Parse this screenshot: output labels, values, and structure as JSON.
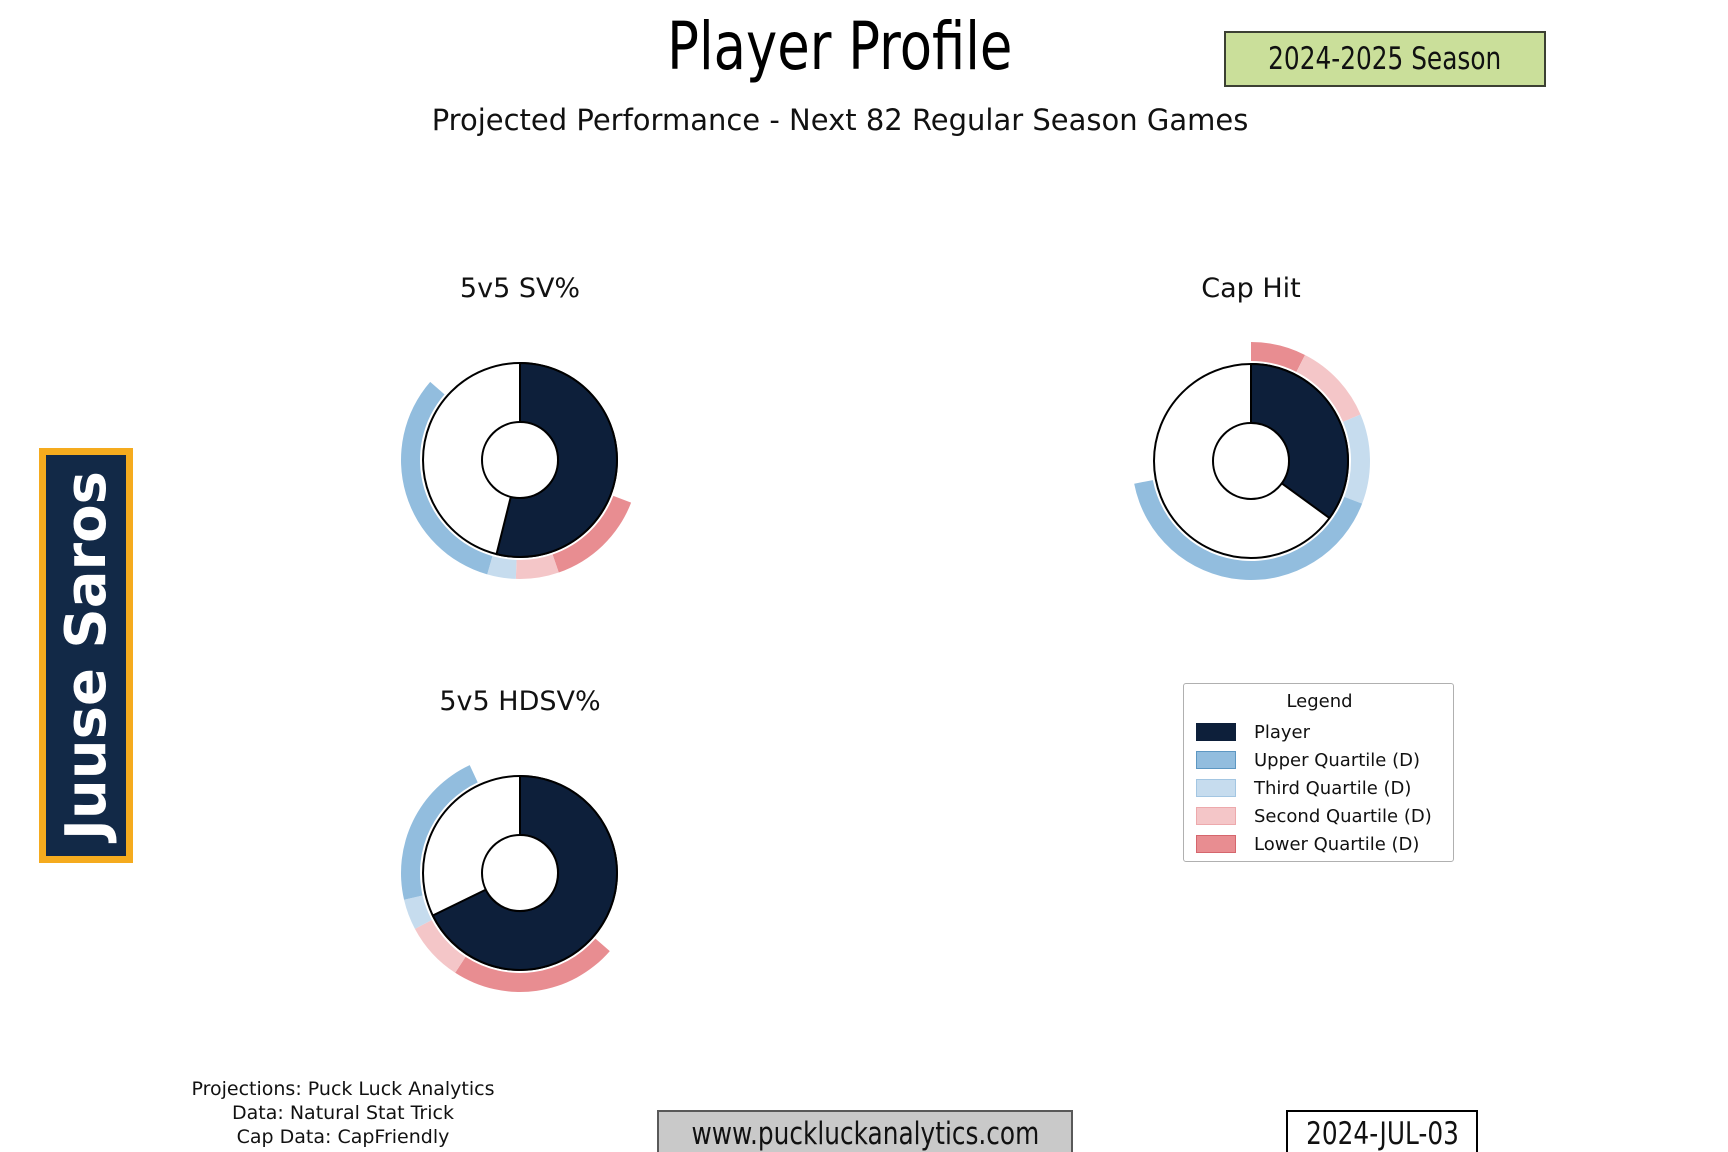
{
  "header": {
    "title": "Player Profile",
    "season_badge": "2024-2025 Season",
    "subtitle": "Projected Performance - Next 82 Regular Season Games"
  },
  "player": {
    "name": "Juuse Saros"
  },
  "legend": {
    "title": "Legend",
    "items": [
      {
        "key": "player",
        "label": "Player"
      },
      {
        "key": "upper",
        "label": "Upper Quartile (D)"
      },
      {
        "key": "third",
        "label": "Third Quartile (D)"
      },
      {
        "key": "second",
        "label": "Second Quartile (D)"
      },
      {
        "key": "lower",
        "label": "Lower Quartile (D)"
      }
    ]
  },
  "footer": {
    "credit_projections": "Projections: Puck Luck Analytics",
    "credit_data": "Data: Natural Stat Trick",
    "credit_cap": "Cap Data: CapFriendly",
    "website": "www.puckluckanalytics.com",
    "date": "2024-JUL-03"
  },
  "colors": {
    "player": "#0d1f3a",
    "upper": "#92bdde",
    "third": "#c6dcee",
    "second": "#f4c6c8",
    "lower": "#e88d91",
    "edge_player": "#0d1f3a",
    "edge_upper": "#5d97c2",
    "edge_third": "#a3c6e2",
    "edge_second": "#eda9ac",
    "edge_lower": "#d5666d",
    "outline": "#000000",
    "sidebar_navy": "#122947",
    "accent_gold": "#f5ab1e",
    "badge_green": "#cadf9a"
  },
  "chart_data": [
    {
      "type": "donut",
      "title": "5v5 SV%",
      "player_sweep_deg": 194,
      "player_share": 0.54,
      "ring_segments": [
        {
          "key": "lower",
          "start_deg": 111,
          "end_deg": 161
        },
        {
          "key": "second",
          "start_deg": 161,
          "end_deg": 182
        },
        {
          "key": "third",
          "start_deg": 182,
          "end_deg": 196
        },
        {
          "key": "upper",
          "start_deg": 196,
          "end_deg": 311
        }
      ]
    },
    {
      "type": "donut",
      "title": "Cap Hit",
      "player_sweep_deg": 126,
      "player_share": 0.35,
      "ring_segments": [
        {
          "key": "lower",
          "start_deg": 0,
          "end_deg": 27
        },
        {
          "key": "second",
          "start_deg": 27,
          "end_deg": 67
        },
        {
          "key": "third",
          "start_deg": 67,
          "end_deg": 111
        },
        {
          "key": "upper",
          "start_deg": 111,
          "end_deg": 259
        }
      ]
    },
    {
      "type": "donut",
      "title": "5v5 HDSV%",
      "player_sweep_deg": 244,
      "player_share": 0.68,
      "ring_segments": [
        {
          "key": "lower",
          "start_deg": 131,
          "end_deg": 213
        },
        {
          "key": "second",
          "start_deg": 213,
          "end_deg": 242
        },
        {
          "key": "third",
          "start_deg": 242,
          "end_deg": 257
        },
        {
          "key": "upper",
          "start_deg": 257,
          "end_deg": 335
        }
      ]
    }
  ],
  "geometry": {
    "donut_outer_r": 97,
    "donut_hole_r": 38,
    "ring_inner_r": 100,
    "ring_outer_r": 119,
    "start_clock_deg": 0
  }
}
